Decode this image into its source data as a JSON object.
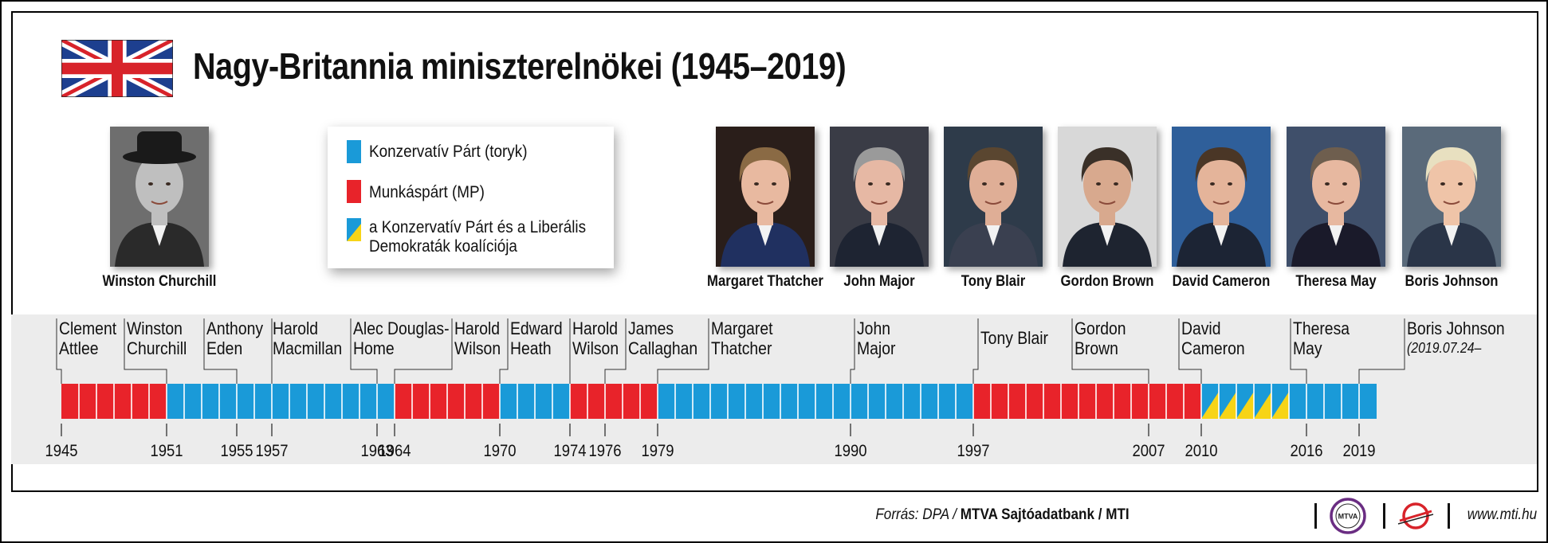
{
  "title": "Nagy-Britannia miniszterelnökei (1945–2019)",
  "colors": {
    "conservative": "#1a9ad8",
    "labour": "#e8232a",
    "coalition_yellow": "#f7d417"
  },
  "legend": [
    {
      "id": "conservative",
      "text": "Konzervatív Párt (toryk)"
    },
    {
      "id": "labour",
      "text": "Munkáspárt (MP)"
    },
    {
      "id": "coalition",
      "text": "a Konzervatív Párt és a Liberális Demokraták koalíciója",
      "lines": [
        "a Konzervatív Párt és a Liberális",
        "Demokraták koalíciója"
      ]
    }
  ],
  "portraits": [
    {
      "name": "Winston Churchill",
      "icon": "portrait-churchill-icon"
    },
    {
      "name": "Margaret Thatcher",
      "icon": "portrait-thatcher-icon"
    },
    {
      "name": "John Major",
      "icon": "portrait-major-icon"
    },
    {
      "name": "Tony Blair",
      "icon": "portrait-blair-icon"
    },
    {
      "name": "Gordon Brown",
      "icon": "portrait-brown-icon"
    },
    {
      "name": "David Cameron",
      "icon": "portrait-cameron-icon"
    },
    {
      "name": "Theresa May",
      "icon": "portrait-may-icon"
    },
    {
      "name": "Boris Johnson",
      "icon": "portrait-johnson-icon"
    }
  ],
  "timeline": {
    "start": 1945,
    "end": 2020,
    "terms": [
      {
        "name": "Clement Attlee",
        "lines": [
          "Clement",
          "Attlee"
        ],
        "party": "labour",
        "from": 1945,
        "to": 1951
      },
      {
        "name": "Winston Churchill",
        "lines": [
          "Winston",
          "Churchill"
        ],
        "party": "conservative",
        "from": 1951,
        "to": 1955
      },
      {
        "name": "Anthony Eden",
        "lines": [
          "Anthony",
          "Eden"
        ],
        "party": "conservative",
        "from": 1955,
        "to": 1957
      },
      {
        "name": "Harold Macmillan",
        "lines": [
          "Harold",
          "Macmillan"
        ],
        "party": "conservative",
        "from": 1957,
        "to": 1963
      },
      {
        "name": "Alec Douglas-Home",
        "lines": [
          "Alec Douglas-",
          "Home"
        ],
        "party": "conservative",
        "from": 1963,
        "to": 1964
      },
      {
        "name": "Harold Wilson",
        "lines": [
          "Harold",
          "Wilson"
        ],
        "party": "labour",
        "from": 1964,
        "to": 1970
      },
      {
        "name": "Edward Heath",
        "lines": [
          "Edward",
          "Heath"
        ],
        "party": "conservative",
        "from": 1970,
        "to": 1974
      },
      {
        "name": "Harold Wilson",
        "lines": [
          "Harold",
          "Wilson"
        ],
        "party": "labour",
        "from": 1974,
        "to": 1976
      },
      {
        "name": "James Callaghan",
        "lines": [
          "James",
          "Callaghan"
        ],
        "party": "labour",
        "from": 1976,
        "to": 1979
      },
      {
        "name": "Margaret Thatcher",
        "lines": [
          "Margaret",
          "Thatcher"
        ],
        "party": "conservative",
        "from": 1979,
        "to": 1990
      },
      {
        "name": "John Major",
        "lines": [
          "John",
          "Major"
        ],
        "party": "conservative",
        "from": 1990,
        "to": 1997
      },
      {
        "name": "Tony Blair",
        "lines": [
          "Tony Blair"
        ],
        "party": "labour",
        "from": 1997,
        "to": 2007
      },
      {
        "name": "Gordon Brown",
        "lines": [
          "Gordon",
          "Brown"
        ],
        "party": "labour",
        "from": 2007,
        "to": 2010
      },
      {
        "name": "David Cameron",
        "lines": [
          "David",
          "Cameron"
        ],
        "party": "coalition",
        "from": 2010,
        "to": 2015
      },
      {
        "name": "David Cameron",
        "lines": [],
        "party": "conservative",
        "from": 2015,
        "to": 2016
      },
      {
        "name": "Theresa May",
        "lines": [
          "Theresa",
          "May"
        ],
        "party": "conservative",
        "from": 2016,
        "to": 2019
      },
      {
        "name": "Boris Johnson",
        "lines": [
          "Boris Johnson"
        ],
        "note": "(2019.07.24–",
        "party": "conservative",
        "from": 2019,
        "to": 2020
      }
    ],
    "years": [
      1945,
      1951,
      1955,
      1957,
      1963,
      1964,
      1970,
      1974,
      1976,
      1979,
      1990,
      1997,
      2007,
      2010,
      2016,
      2019
    ]
  },
  "footer": {
    "source_prefix": "Forrás: DPA /",
    "source_bold": "MTVA Sajtóadatbank / MTI",
    "logo1_text": "MTVA",
    "website": "www.mti.hu"
  }
}
